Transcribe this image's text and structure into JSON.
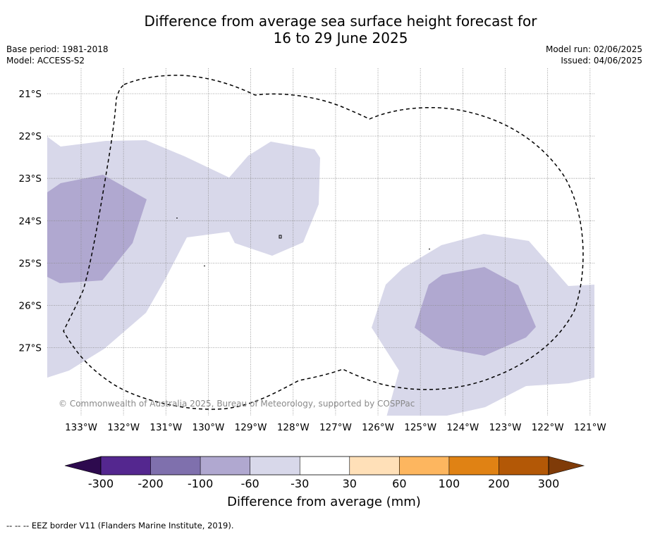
{
  "title_line1": "Difference from average sea surface height forecast for",
  "title_line2": "16 to 29 June 2025",
  "base_period": "Base period: 1981-2018",
  "model": "Model: ACCESS-S2",
  "model_run": "Model run: 02/06/2025",
  "issued": "Issued: 04/06/2025",
  "copyright": "© Commonwealth of Australia 2025, Bureau of Meteorology, supported by COSPPac",
  "lon_labels": [
    "133°W",
    "132°W",
    "131°W",
    "130°W",
    "129°W",
    "128°W",
    "127°W",
    "126°W",
    "125°W",
    "124°W",
    "123°W",
    "122°W",
    "121°W"
  ],
  "lat_labels": [
    "21°S",
    "22°S",
    "23°S",
    "24°S",
    "25°S",
    "26°S",
    "27°S"
  ],
  "colorbar": {
    "label": "Difference from average (mm)",
    "ticks": [
      "-300",
      "-200",
      "-100",
      "-60",
      "-30",
      "30",
      "60",
      "100",
      "200",
      "300"
    ],
    "colors": [
      "#2d0a4e",
      "#54278f",
      "#7f70ad",
      "#b0a8d0",
      "#d8d8ea",
      "#ffffff",
      "#ffe0b8",
      "#fdb65f",
      "#e08214",
      "#b35806",
      "#7f3b08"
    ]
  },
  "legend_note": "--  --  -- EEZ border V11 (Flanders Marine Institute, 2019)."
}
